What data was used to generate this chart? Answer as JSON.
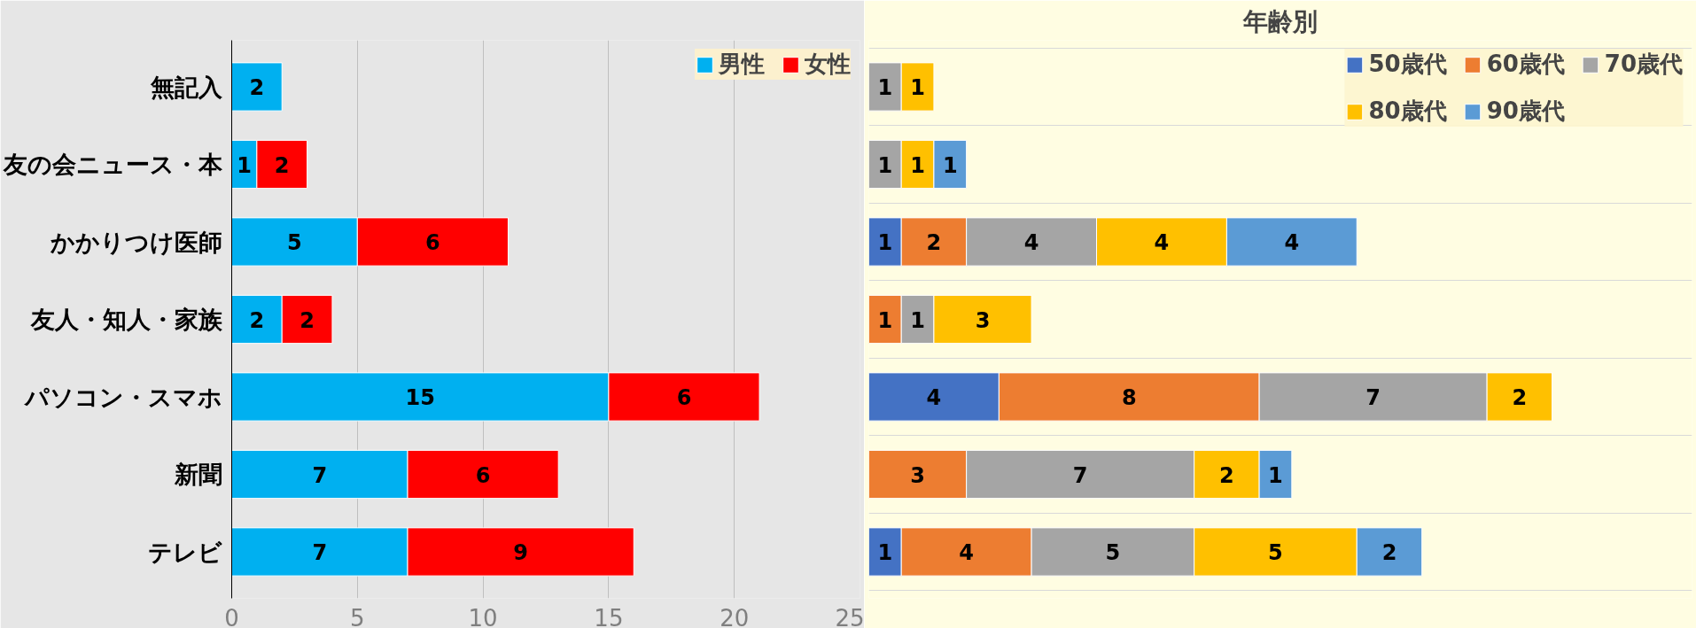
{
  "chart_data": [
    {
      "type": "bar",
      "orientation": "horizontal",
      "stacked": true,
      "categories": [
        "無記入",
        "友の会ニュース・本",
        "かかりつけ医師",
        "友人・知人・家族",
        "パソコン・スマホ",
        "新聞",
        "テレビ"
      ],
      "series": [
        {
          "name": "男性",
          "color": "#00b0f0",
          "values": [
            2,
            1,
            5,
            2,
            15,
            7,
            7
          ]
        },
        {
          "name": "女性",
          "color": "#ff0000",
          "values": [
            null,
            2,
            6,
            2,
            6,
            6,
            9
          ]
        }
      ],
      "xlim": [
        0,
        25
      ],
      "xticks": [
        0,
        5,
        10,
        15,
        20,
        25
      ],
      "grid": "x",
      "legend": "top right",
      "data_labels": true
    },
    {
      "type": "bar",
      "orientation": "horizontal",
      "stacked": true,
      "title": "年齢別",
      "categories": [
        null,
        null,
        null,
        null,
        null,
        null,
        null
      ],
      "series": [
        {
          "name": "50歳代",
          "color": "#4472c4",
          "values": [
            null,
            null,
            1,
            null,
            4,
            null,
            1
          ]
        },
        {
          "name": "60歳代",
          "color": "#ed7d31",
          "values": [
            null,
            null,
            2,
            1,
            8,
            3,
            4
          ]
        },
        {
          "name": "70歳代",
          "color": "#a5a5a5",
          "values": [
            1,
            1,
            4,
            1,
            7,
            7,
            5
          ]
        },
        {
          "name": "80歳代",
          "color": "#ffc000",
          "values": [
            1,
            1,
            4,
            3,
            2,
            2,
            5
          ]
        },
        {
          "name": "90歳代",
          "color": "#5b9bd5",
          "values": [
            null,
            1,
            4,
            null,
            null,
            1,
            2
          ]
        }
      ],
      "tick_labels": false,
      "grid": "y",
      "legend": "top",
      "data_labels": true
    }
  ]
}
